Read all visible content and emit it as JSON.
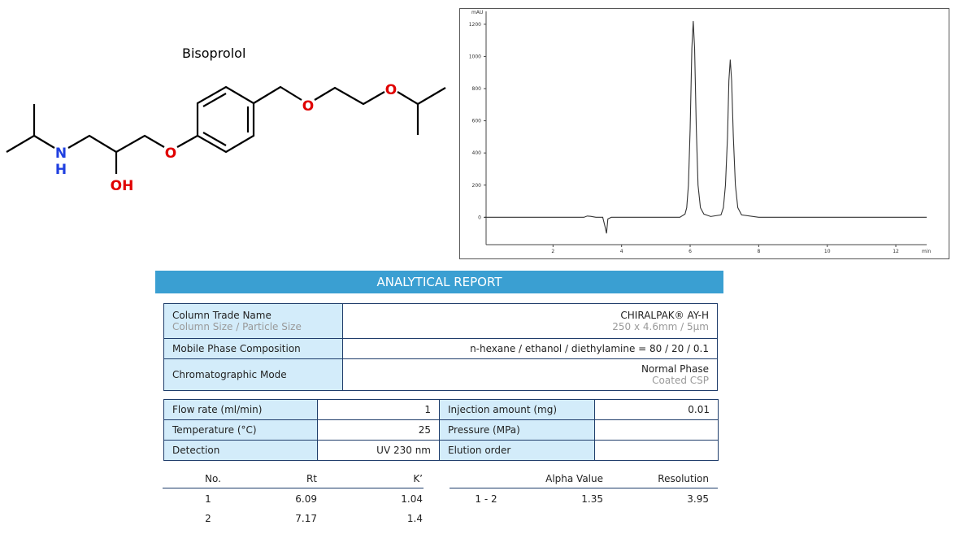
{
  "molecule": {
    "name": "Bisoprolol",
    "atoms": [
      "N",
      "H",
      "OH",
      "O",
      "O",
      "O"
    ]
  },
  "chart_data": {
    "type": "line",
    "xlabel": "min",
    "ylabel": "mAU",
    "x": [
      0,
      2.9,
      3.0,
      3.1,
      3.25,
      3.45,
      3.52,
      3.56,
      3.6,
      3.7,
      5.7,
      5.85,
      5.9,
      5.95,
      6.0,
      6.05,
      6.09,
      6.13,
      6.18,
      6.23,
      6.3,
      6.4,
      6.6,
      6.9,
      6.97,
      7.03,
      7.09,
      7.13,
      7.17,
      7.21,
      7.26,
      7.32,
      7.39,
      7.5,
      8.0,
      12.9
    ],
    "values": [
      0,
      0,
      8,
      6,
      0,
      0,
      -60,
      -100,
      -10,
      0,
      0,
      20,
      60,
      200,
      550,
      1050,
      1220,
      1050,
      550,
      200,
      60,
      20,
      5,
      15,
      60,
      200,
      500,
      850,
      980,
      850,
      500,
      200,
      60,
      15,
      0,
      0
    ],
    "color": "#333333",
    "xlim": [
      0,
      12.9
    ],
    "xticks": [
      2,
      4,
      6,
      8,
      10,
      12
    ],
    "ylim": [
      -170,
      1280
    ],
    "yticks": [
      0,
      200,
      400,
      600,
      800,
      1000,
      1200
    ]
  },
  "report": {
    "title": "ANALYTICAL REPORT",
    "column": [
      [
        "Column Trade Name",
        "Column Size / Particle Size",
        "CHIRALPAK® AY-H",
        "250 x 4.6mm / 5μm"
      ],
      [
        "Mobile Phase Composition",
        "n-hexane / ethanol / diethylamine = 80 / 20 / 0.1"
      ],
      [
        "Chromatographic Mode",
        "Normal Phase",
        "Coated CSP"
      ]
    ],
    "conditions": [
      [
        "Flow rate (ml/min)",
        "1",
        "Injection amount (mg)",
        "0.01"
      ],
      [
        "Temperature (°C)",
        "25",
        "Pressure (MPa)",
        ""
      ],
      [
        "Detection",
        "UV 230 nm",
        "Elution order",
        ""
      ]
    ],
    "results": {
      "headers": [
        "No.",
        "Rt",
        "K’",
        "Alpha Value",
        "Resolution"
      ],
      "rows": [
        [
          "1",
          "6.09",
          "1.04",
          "1 - 2",
          "1.35",
          "3.95"
        ],
        [
          "2",
          "7.17",
          "1.4"
        ]
      ]
    }
  }
}
